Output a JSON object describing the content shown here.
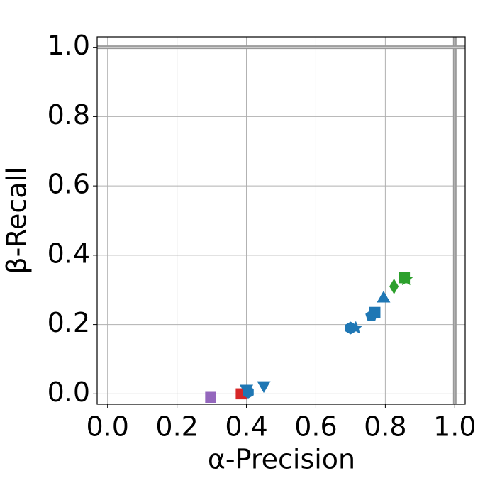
{
  "chart_data": {
    "type": "scatter",
    "x_label": "α-Precision",
    "y_label": "β-Recall",
    "xlim": [
      -0.03,
      1.03
    ],
    "ylim": [
      -0.03,
      1.03
    ],
    "xticks": [
      {
        "value": 0,
        "label": "0.0"
      },
      0.2,
      0.4,
      0.6,
      0.8,
      {
        "value": 1,
        "label": "1.0"
      }
    ],
    "yticks": [
      {
        "value": 0,
        "label": "0.0"
      },
      0.2,
      0.4,
      0.6,
      0.8,
      {
        "value": 1,
        "label": "1.0"
      }
    ],
    "grid": true,
    "reference_x": 1,
    "reference_y": 1,
    "series": [
      {
        "color": "#9467bd",
        "marker": "square",
        "x": [
          0.297
        ],
        "values": [
          -0.01
        ]
      },
      {
        "color": "#d62728",
        "marker": "square",
        "x": [
          0.385
        ],
        "values": [
          0.0
        ]
      },
      {
        "color": "#1f77b4",
        "marker": "triangle-down",
        "x": [
          0.4,
          0.45
        ],
        "values": [
          0.015,
          0.025
        ]
      },
      {
        "color": "#1f77b4",
        "marker": "hexagon",
        "x": [
          0.405,
          0.7
        ],
        "values": [
          0.005,
          0.19
        ]
      },
      {
        "color": "#1f77b4",
        "marker": "star",
        "x": [
          0.715
        ],
        "values": [
          0.19
        ]
      },
      {
        "color": "#1f77b4",
        "marker": "pentagon",
        "x": [
          0.76
        ],
        "values": [
          0.225
        ]
      },
      {
        "color": "#1f77b4",
        "marker": "square",
        "x": [
          0.77
        ],
        "values": [
          0.235
        ]
      },
      {
        "color": "#1f77b4",
        "marker": "triangle-up",
        "x": [
          0.795
        ],
        "values": [
          0.275
        ]
      },
      {
        "color": "#2ca02c",
        "marker": "diamond",
        "x": [
          0.825
        ],
        "values": [
          0.31
        ]
      },
      {
        "color": "#2ca02c",
        "marker": "square",
        "x": [
          0.855
        ],
        "values": [
          0.335
        ]
      },
      {
        "color": "#2ca02c",
        "marker": "star",
        "x": [
          0.86
        ],
        "values": [
          0.33
        ]
      }
    ]
  }
}
